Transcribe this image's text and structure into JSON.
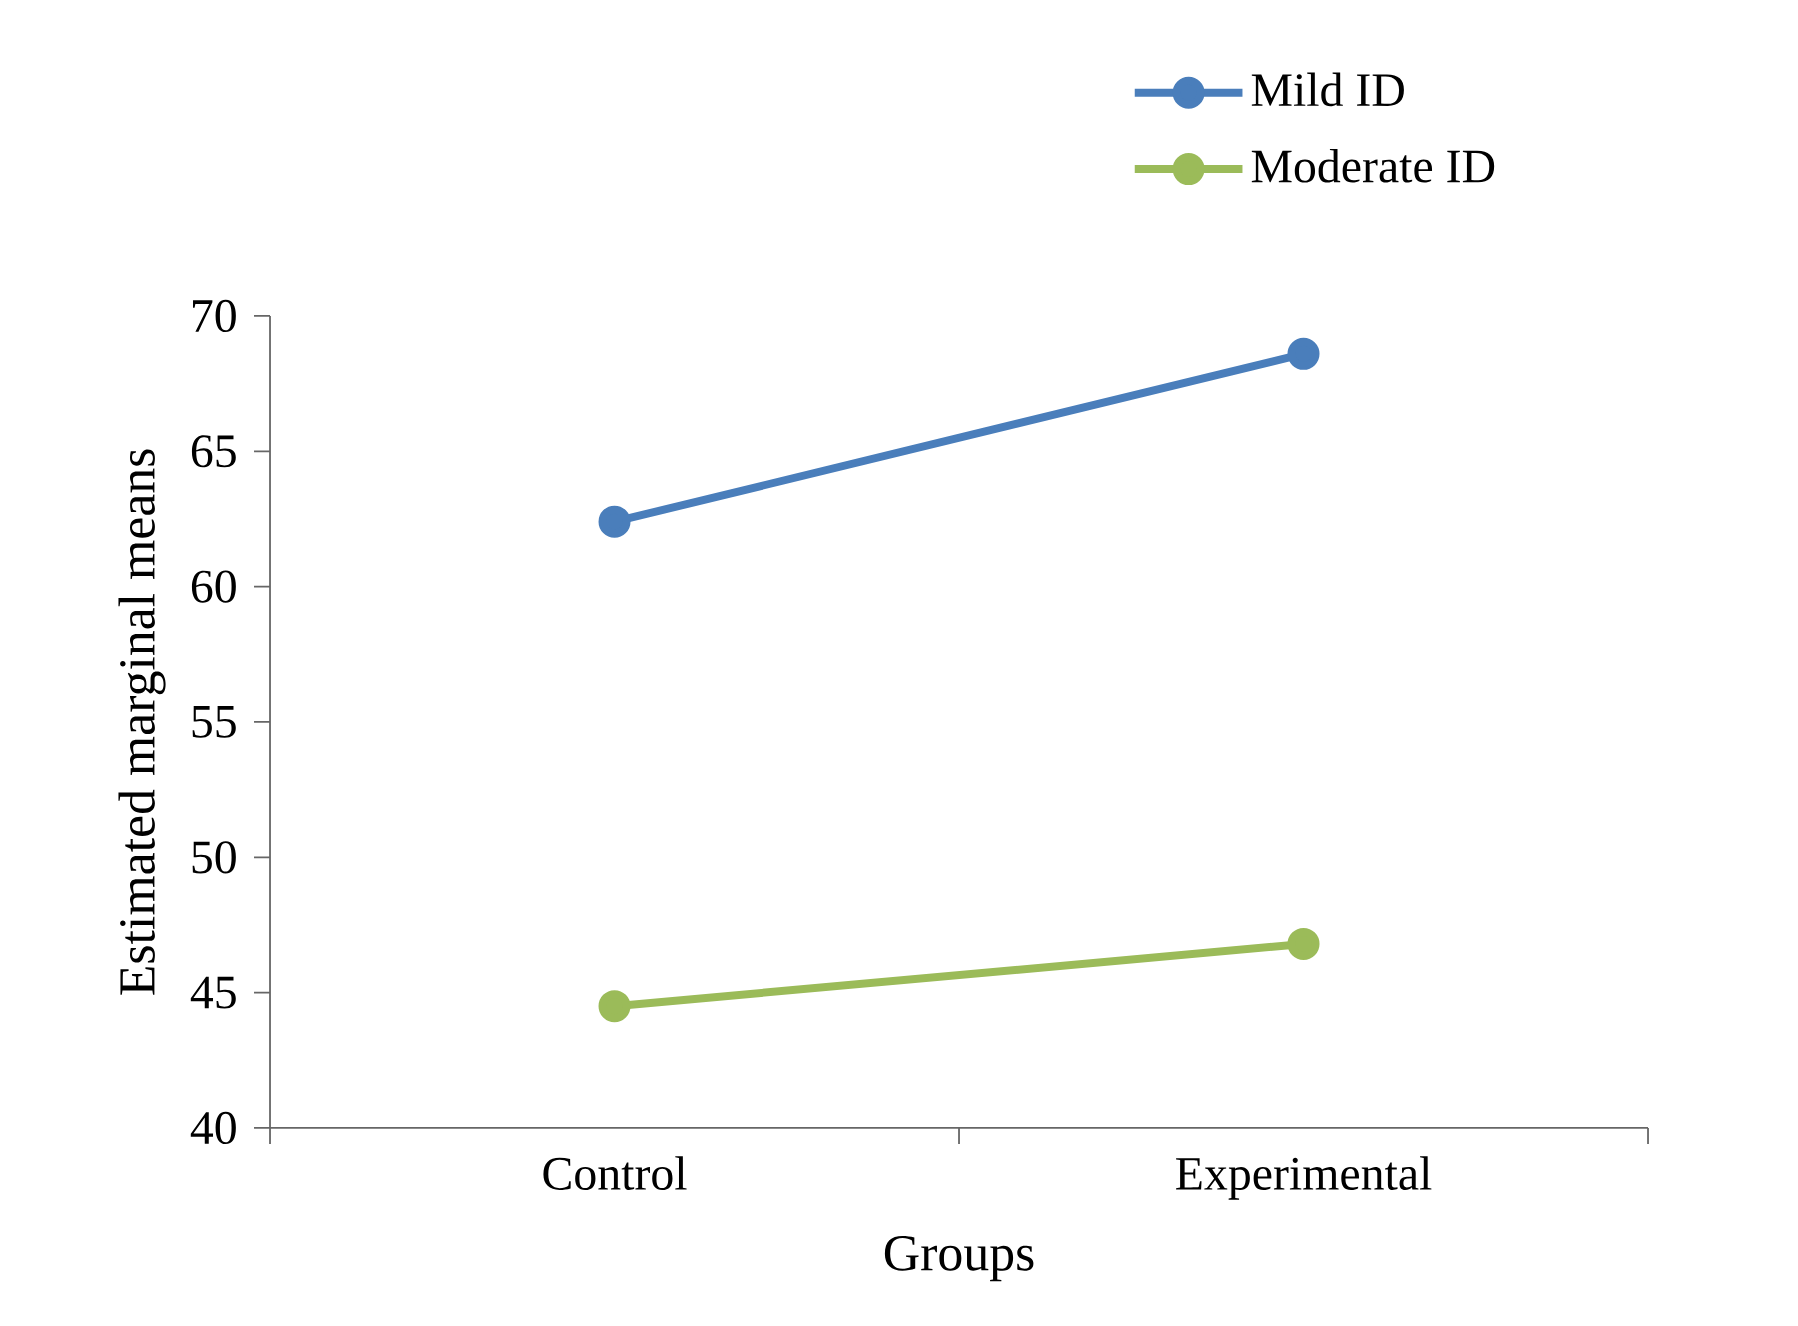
{
  "chart_data": {
    "type": "line",
    "xlabel": "Groups",
    "ylabel": "Estimated marginal means",
    "categories": [
      "Control",
      "Experimental"
    ],
    "series": [
      {
        "name": "Mild ID",
        "color": "#4a7ebb",
        "values": [
          62.4,
          68.6
        ]
      },
      {
        "name": "Moderate ID",
        "color": "#9bbb59",
        "values": [
          44.5,
          46.8
        ]
      }
    ],
    "ylim": [
      40,
      70
    ],
    "yticks": [
      40,
      45,
      50,
      55,
      60,
      65,
      70
    ],
    "grid": false,
    "legend": "top right",
    "marker": "circle",
    "line_style": "solid"
  }
}
